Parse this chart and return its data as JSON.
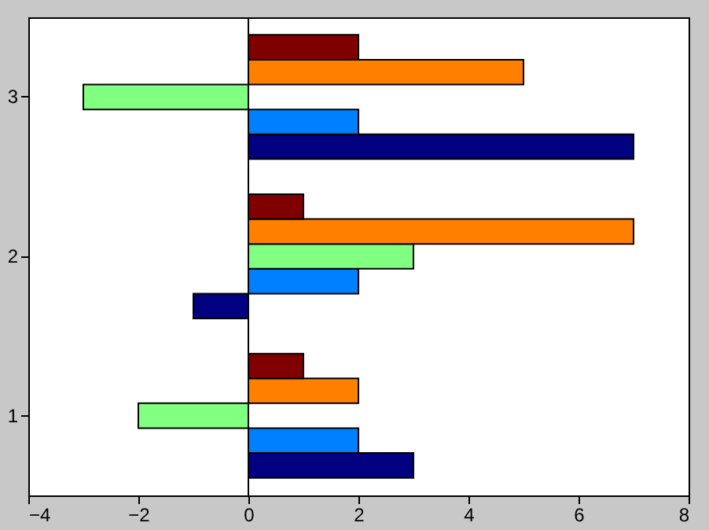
{
  "chart_data": {
    "type": "bar",
    "orientation": "horizontal",
    "categories": [
      "3",
      "2",
      "1"
    ],
    "series": [
      {
        "color": "#000080",
        "values": [
          7,
          -1,
          3
        ]
      },
      {
        "color": "#0080ff",
        "values": [
          2,
          2,
          2
        ]
      },
      {
        "color": "#80ff80",
        "values": [
          -3,
          3,
          -2
        ]
      },
      {
        "color": "#ff8000",
        "values": [
          5,
          7,
          2
        ]
      },
      {
        "color": "#800000",
        "values": [
          2,
          1,
          1
        ]
      }
    ],
    "xlim": [
      -4,
      8
    ],
    "xticks": [
      -4,
      -2,
      0,
      2,
      4,
      6,
      8
    ],
    "grid": false,
    "ref_lines": [
      {
        "axis": "x",
        "value": 0
      }
    ],
    "legend": false
  }
}
